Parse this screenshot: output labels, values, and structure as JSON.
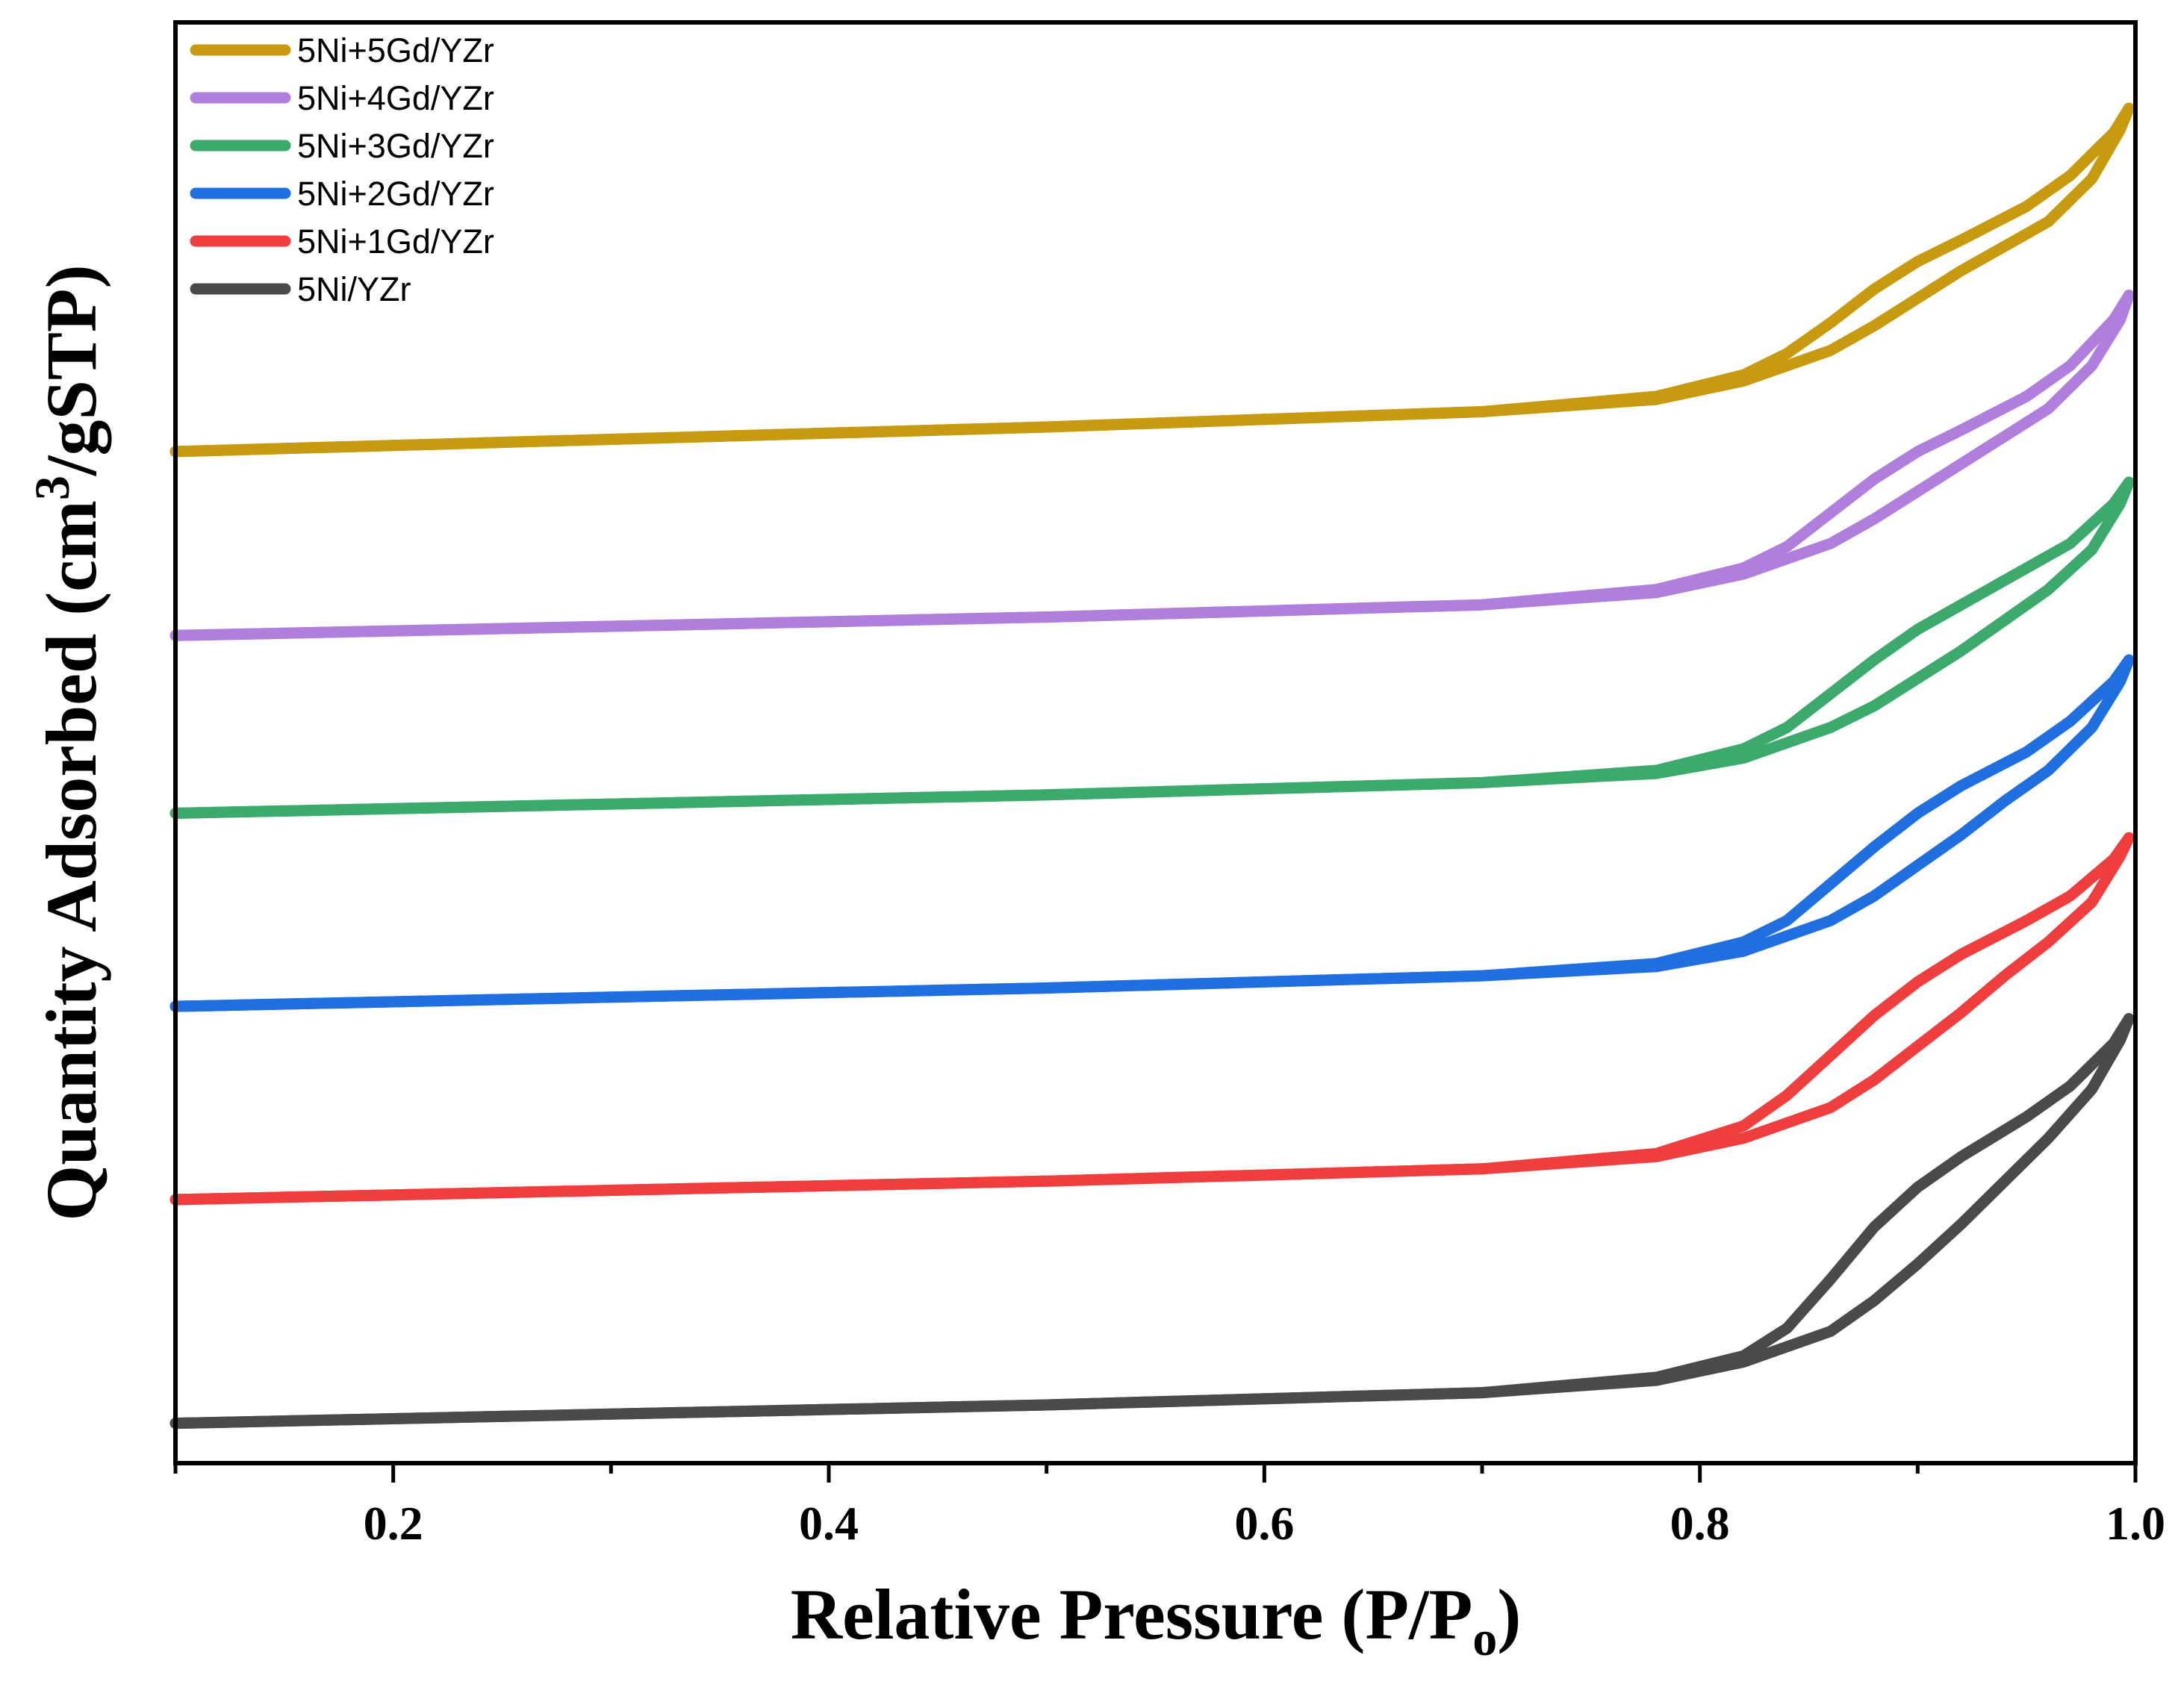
{
  "chart_data": {
    "type": "line",
    "xlabel": "Relative Pressure (P/P",
    "xlabel_sub": "o",
    "xlabel_end": ")",
    "ylabel": "Quantity Adsorbed (cm",
    "ylabel_sup": "3",
    "ylabel_end": "/gSTP)",
    "xlim": [
      0.1,
      1.0
    ],
    "x_ticks": [
      0.2,
      0.4,
      0.6,
      0.8,
      1.0
    ],
    "x_tick_labels": [
      "0.2",
      "0.4",
      "0.6",
      "0.8",
      "1.0"
    ],
    "y_ticks_shown": false,
    "grid": false,
    "legend_position": "top-left",
    "series": [
      {
        "name": "5Ni+5Gd/YZr",
        "color": "#C89A10",
        "adsorption": [
          [
            0.1,
            3.0
          ],
          [
            0.3,
            3.04
          ],
          [
            0.5,
            3.08
          ],
          [
            0.7,
            3.13
          ],
          [
            0.78,
            3.17
          ],
          [
            0.82,
            3.23
          ],
          [
            0.86,
            3.33
          ],
          [
            0.88,
            3.41
          ],
          [
            0.9,
            3.5
          ],
          [
            0.92,
            3.59
          ],
          [
            0.94,
            3.67
          ],
          [
            0.96,
            3.75
          ],
          [
            0.98,
            3.89
          ],
          [
            0.993,
            4.05
          ],
          [
            0.997,
            4.12
          ]
        ],
        "desorption": [
          [
            0.997,
            4.12
          ],
          [
            0.99,
            4.04
          ],
          [
            0.97,
            3.9
          ],
          [
            0.95,
            3.8
          ],
          [
            0.92,
            3.69
          ],
          [
            0.9,
            3.62
          ],
          [
            0.88,
            3.53
          ],
          [
            0.86,
            3.42
          ],
          [
            0.84,
            3.32
          ],
          [
            0.82,
            3.25
          ],
          [
            0.78,
            3.18
          ],
          [
            0.7,
            3.13
          ],
          [
            0.5,
            3.08
          ],
          [
            0.3,
            3.04
          ],
          [
            0.1,
            3.0
          ]
        ]
      },
      {
        "name": "5Ni+4Gd/YZr",
        "color": "#B07EDD",
        "adsorption": [
          [
            0.1,
            2.4
          ],
          [
            0.3,
            2.43
          ],
          [
            0.5,
            2.46
          ],
          [
            0.7,
            2.5
          ],
          [
            0.78,
            2.54
          ],
          [
            0.82,
            2.6
          ],
          [
            0.86,
            2.7
          ],
          [
            0.88,
            2.78
          ],
          [
            0.9,
            2.87
          ],
          [
            0.92,
            2.96
          ],
          [
            0.94,
            3.05
          ],
          [
            0.96,
            3.14
          ],
          [
            0.98,
            3.28
          ],
          [
            0.993,
            3.43
          ],
          [
            0.997,
            3.51
          ]
        ],
        "desorption": [
          [
            0.997,
            3.51
          ],
          [
            0.99,
            3.43
          ],
          [
            0.97,
            3.28
          ],
          [
            0.95,
            3.18
          ],
          [
            0.92,
            3.07
          ],
          [
            0.9,
            3.0
          ],
          [
            0.88,
            2.91
          ],
          [
            0.86,
            2.8
          ],
          [
            0.84,
            2.69
          ],
          [
            0.82,
            2.62
          ],
          [
            0.78,
            2.55
          ],
          [
            0.7,
            2.5
          ],
          [
            0.5,
            2.46
          ],
          [
            0.3,
            2.43
          ],
          [
            0.1,
            2.4
          ]
        ]
      },
      {
        "name": "5Ni+3Gd/YZr",
        "color": "#3BAA6C",
        "adsorption": [
          [
            0.1,
            1.82
          ],
          [
            0.3,
            1.85
          ],
          [
            0.5,
            1.88
          ],
          [
            0.7,
            1.92
          ],
          [
            0.78,
            1.95
          ],
          [
            0.82,
            2.0
          ],
          [
            0.86,
            2.1
          ],
          [
            0.88,
            2.17
          ],
          [
            0.9,
            2.26
          ],
          [
            0.92,
            2.35
          ],
          [
            0.94,
            2.45
          ],
          [
            0.96,
            2.55
          ],
          [
            0.98,
            2.68
          ],
          [
            0.993,
            2.83
          ],
          [
            0.997,
            2.9
          ]
        ],
        "desorption": [
          [
            0.997,
            2.9
          ],
          [
            0.99,
            2.83
          ],
          [
            0.97,
            2.7
          ],
          [
            0.95,
            2.62
          ],
          [
            0.92,
            2.5
          ],
          [
            0.9,
            2.42
          ],
          [
            0.88,
            2.32
          ],
          [
            0.86,
            2.21
          ],
          [
            0.84,
            2.1
          ],
          [
            0.82,
            2.03
          ],
          [
            0.78,
            1.96
          ],
          [
            0.7,
            1.92
          ],
          [
            0.5,
            1.88
          ],
          [
            0.3,
            1.85
          ],
          [
            0.1,
            1.82
          ]
        ]
      },
      {
        "name": "5Ni+2Gd/YZr",
        "color": "#1F6FE0",
        "adsorption": [
          [
            0.1,
            1.19
          ],
          [
            0.3,
            1.22
          ],
          [
            0.5,
            1.25
          ],
          [
            0.7,
            1.29
          ],
          [
            0.78,
            1.32
          ],
          [
            0.82,
            1.37
          ],
          [
            0.86,
            1.47
          ],
          [
            0.88,
            1.55
          ],
          [
            0.9,
            1.65
          ],
          [
            0.92,
            1.75
          ],
          [
            0.94,
            1.86
          ],
          [
            0.96,
            1.96
          ],
          [
            0.98,
            2.1
          ],
          [
            0.993,
            2.25
          ],
          [
            0.997,
            2.32
          ]
        ],
        "desorption": [
          [
            0.997,
            2.32
          ],
          [
            0.99,
            2.25
          ],
          [
            0.97,
            2.12
          ],
          [
            0.95,
            2.02
          ],
          [
            0.92,
            1.91
          ],
          [
            0.9,
            1.82
          ],
          [
            0.88,
            1.71
          ],
          [
            0.86,
            1.59
          ],
          [
            0.84,
            1.47
          ],
          [
            0.82,
            1.4
          ],
          [
            0.78,
            1.33
          ],
          [
            0.7,
            1.29
          ],
          [
            0.5,
            1.25
          ],
          [
            0.3,
            1.22
          ],
          [
            0.1,
            1.19
          ]
        ]
      },
      {
        "name": "5Ni+1Gd/YZr",
        "color": "#F03E3E",
        "adsorption": [
          [
            0.1,
            0.56
          ],
          [
            0.3,
            0.59
          ],
          [
            0.5,
            0.62
          ],
          [
            0.7,
            0.66
          ],
          [
            0.78,
            0.7
          ],
          [
            0.82,
            0.76
          ],
          [
            0.86,
            0.86
          ],
          [
            0.88,
            0.95
          ],
          [
            0.9,
            1.06
          ],
          [
            0.92,
            1.17
          ],
          [
            0.94,
            1.29
          ],
          [
            0.96,
            1.4
          ],
          [
            0.98,
            1.53
          ],
          [
            0.993,
            1.68
          ],
          [
            0.997,
            1.74
          ]
        ],
        "desorption": [
          [
            0.997,
            1.74
          ],
          [
            0.99,
            1.67
          ],
          [
            0.97,
            1.55
          ],
          [
            0.95,
            1.47
          ],
          [
            0.92,
            1.36
          ],
          [
            0.9,
            1.27
          ],
          [
            0.88,
            1.16
          ],
          [
            0.86,
            1.03
          ],
          [
            0.84,
            0.9
          ],
          [
            0.82,
            0.8
          ],
          [
            0.78,
            0.71
          ],
          [
            0.7,
            0.66
          ],
          [
            0.5,
            0.62
          ],
          [
            0.3,
            0.59
          ],
          [
            0.1,
            0.56
          ]
        ]
      },
      {
        "name": "5Ni/YZr",
        "color": "#4A4A4A",
        "adsorption": [
          [
            0.1,
            -0.17
          ],
          [
            0.3,
            -0.14
          ],
          [
            0.5,
            -0.11
          ],
          [
            0.7,
            -0.07
          ],
          [
            0.78,
            -0.03
          ],
          [
            0.82,
            0.03
          ],
          [
            0.86,
            0.13
          ],
          [
            0.88,
            0.23
          ],
          [
            0.9,
            0.35
          ],
          [
            0.92,
            0.48
          ],
          [
            0.94,
            0.62
          ],
          [
            0.96,
            0.76
          ],
          [
            0.98,
            0.92
          ],
          [
            0.993,
            1.08
          ],
          [
            0.997,
            1.15
          ]
        ],
        "desorption": [
          [
            0.997,
            1.15
          ],
          [
            0.99,
            1.07
          ],
          [
            0.97,
            0.93
          ],
          [
            0.95,
            0.83
          ],
          [
            0.92,
            0.7
          ],
          [
            0.9,
            0.6
          ],
          [
            0.88,
            0.47
          ],
          [
            0.86,
            0.3
          ],
          [
            0.84,
            0.14
          ],
          [
            0.82,
            0.05
          ],
          [
            0.78,
            -0.02
          ],
          [
            0.7,
            -0.07
          ],
          [
            0.5,
            -0.11
          ],
          [
            0.3,
            -0.14
          ],
          [
            0.1,
            -0.17
          ]
        ]
      }
    ]
  }
}
